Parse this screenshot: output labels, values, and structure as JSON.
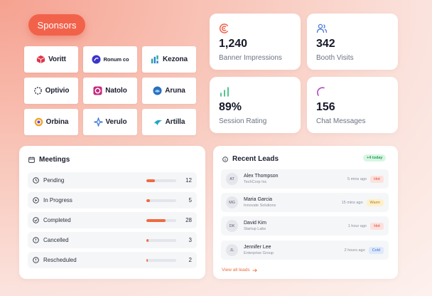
{
  "sponsors": {
    "button_label": "Sponsors",
    "logos": [
      {
        "name": "Voritt",
        "icon": "cube-icon",
        "color": "#e0344b"
      },
      {
        "name": "Ronum co",
        "icon": "swirl-circle-icon",
        "color": "#3b35c9"
      },
      {
        "name": "Kezona",
        "icon": "bars-icon",
        "color": "#1da89a"
      },
      {
        "name": "Optivio",
        "icon": "dotted-ring-icon",
        "color": "#2d3340"
      },
      {
        "name": "Natolo",
        "icon": "flower-icon",
        "color": "#c5287d"
      },
      {
        "name": "Aruna",
        "icon": "droplet-circle-icon",
        "color": "#2b6fbf"
      },
      {
        "name": "Orbina",
        "icon": "ring-icon",
        "color": "#f3a21e"
      },
      {
        "name": "Verulo",
        "icon": "star-burst-icon",
        "color": "#2f6fd6"
      },
      {
        "name": "Artilla",
        "icon": "wave-icon",
        "color": "#1fa6c9"
      }
    ]
  },
  "stats": [
    {
      "value": "1,240",
      "label": "Banner Impressions",
      "icon": "eye-broadcast-icon",
      "color": "#f0624a"
    },
    {
      "value": "342",
      "label": "Booth Visits",
      "icon": "users-icon",
      "color": "#4a7ad9"
    },
    {
      "value": "89%",
      "label": "Session Rating",
      "icon": "signal-bars-icon",
      "color": "#2bb673"
    },
    {
      "value": "156",
      "label": "Chat Messages",
      "icon": "arc-loader-icon",
      "color": "#b548c6"
    }
  ],
  "meetings": {
    "title": "Meetings",
    "icon": "calendar-icon",
    "rows": [
      {
        "label": "Pending",
        "count": "12",
        "fraction": 0.28,
        "icon": "clock-icon"
      },
      {
        "label": "In Progress",
        "count": "5",
        "fraction": 0.12,
        "icon": "play-circle-icon"
      },
      {
        "label": "Completed",
        "count": "28",
        "fraction": 0.65,
        "icon": "check-circle-icon"
      },
      {
        "label": "Cancelled",
        "count": "3",
        "fraction": 0.07,
        "icon": "alert-circle-icon"
      },
      {
        "label": "Rescheduled",
        "count": "2",
        "fraction": 0.05,
        "icon": "alert-circle-icon"
      }
    ]
  },
  "leads": {
    "title": "Recent Leads",
    "icon": "info-circle-icon",
    "today_badge": "+4 today",
    "rows": [
      {
        "initials": "AT",
        "name": "Alex Thompson",
        "org": "TechCorp Inc",
        "time": "5 mins ago",
        "status": "Hot",
        "kind": "hot"
      },
      {
        "initials": "MG",
        "name": "Maria Garcia",
        "org": "Innovate Solutions",
        "time": "15 mins ago",
        "status": "Warm",
        "kind": "warm"
      },
      {
        "initials": "DK",
        "name": "David Kim",
        "org": "Startup Labs",
        "time": "1 hour ago",
        "status": "Hot",
        "kind": "hot"
      },
      {
        "initials": "JL",
        "name": "Jennifer Lee",
        "org": "Enterprise Group",
        "time": "2 hours ago",
        "status": "Cold",
        "kind": "cold"
      }
    ],
    "view_all": "View all leads"
  }
}
